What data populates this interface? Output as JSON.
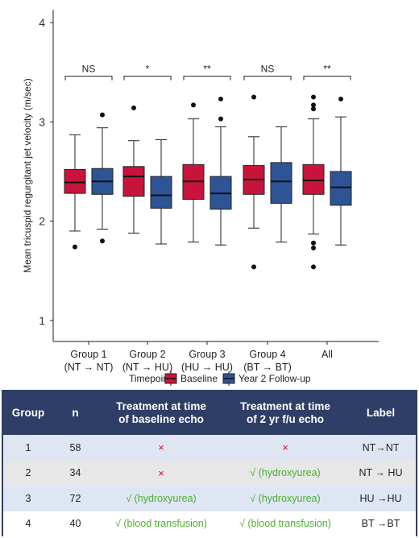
{
  "chart_data": {
    "type": "box",
    "ylabel": "Mean tricuspid regurgitant jet velocity (m/sec)",
    "ylim": [
      0.8,
      4.1
    ],
    "yticks": [
      1,
      2,
      3,
      4
    ],
    "grid": false,
    "categories": [
      "Group 1\n(NT → NT)",
      "Group 2\n(NT → HU)",
      "Group 3\n(HU → HU)",
      "Group 4\n(BT → BT)",
      "All"
    ],
    "legend": {
      "title": "Timepoint",
      "position": "bottom"
    },
    "series": [
      {
        "name": "Baseline",
        "color": "#c8143c",
        "boxes": [
          {
            "min": 1.9,
            "q1": 2.28,
            "median": 2.39,
            "q3": 2.52,
            "max": 2.87,
            "outliers": [
              1.74
            ]
          },
          {
            "min": 1.88,
            "q1": 2.25,
            "median": 2.45,
            "q3": 2.55,
            "max": 2.81,
            "outliers": [
              3.14
            ]
          },
          {
            "min": 1.79,
            "q1": 2.22,
            "median": 2.4,
            "q3": 2.57,
            "max": 3.03,
            "outliers": [
              3.17
            ]
          },
          {
            "min": 1.93,
            "q1": 2.27,
            "median": 2.42,
            "q3": 2.56,
            "max": 2.85,
            "outliers": [
              1.54,
              3.25
            ]
          },
          {
            "min": 1.87,
            "q1": 2.27,
            "median": 2.41,
            "q3": 2.57,
            "max": 3.03,
            "outliers": [
              1.54,
              1.73,
              1.78,
              3.13,
              3.17,
              3.25
            ]
          }
        ]
      },
      {
        "name": "Year 2 Follow-up",
        "color": "#2f5496",
        "boxes": [
          {
            "min": 1.92,
            "q1": 2.27,
            "median": 2.4,
            "q3": 2.53,
            "max": 2.94,
            "outliers": [
              1.8,
              3.07
            ]
          },
          {
            "min": 1.77,
            "q1": 2.13,
            "median": 2.26,
            "q3": 2.45,
            "max": 2.82,
            "outliers": []
          },
          {
            "min": 1.76,
            "q1": 2.12,
            "median": 2.28,
            "q3": 2.45,
            "max": 2.95,
            "outliers": [
              3.03,
              3.23
            ]
          },
          {
            "min": 1.79,
            "q1": 2.18,
            "median": 2.4,
            "q3": 2.59,
            "max": 2.95,
            "outliers": []
          },
          {
            "min": 1.76,
            "q1": 2.16,
            "median": 2.34,
            "q3": 2.5,
            "max": 3.05,
            "outliers": [
              3.23
            ]
          }
        ]
      }
    ],
    "annotations": [
      "NS",
      "*",
      "**",
      "NS",
      "**"
    ]
  },
  "table": {
    "headers": [
      "Group",
      "n",
      "Treatment at time\nof baseline echo",
      "Treatment at time\nof 2 yr f/u echo",
      "Label"
    ],
    "rows": [
      [
        "1",
        "58",
        "×",
        "×",
        "NT→NT"
      ],
      [
        "2",
        "34",
        "×",
        "√  (hydroxyurea)",
        "NT → HU"
      ],
      [
        "3",
        "72",
        "√  (hydroxyurea)",
        "√  (hydroxyurea)",
        "HU →HU"
      ],
      [
        "4",
        "40",
        "√  (blood transfusion)",
        "√  (blood transfusion)",
        "BT →BT"
      ]
    ],
    "row_colors": [
      "#dfe6f3",
      "#e7e7e7",
      "#dfe6f3",
      "#ffffff"
    ]
  }
}
